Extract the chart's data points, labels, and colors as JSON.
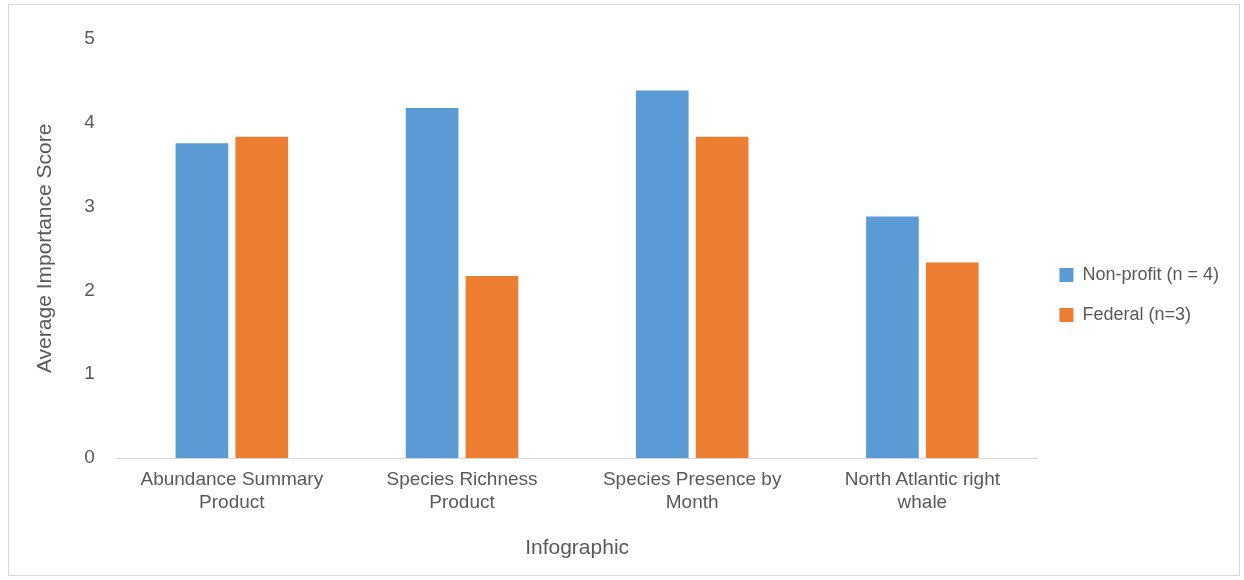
{
  "chart_data": {
    "type": "bar",
    "xlabel": "Infographic",
    "ylabel": "Average Importance Score",
    "categories": [
      "Abundance Summary Product",
      "Species Richness Product",
      "Species Presence by Month",
      "North Atlantic right whale"
    ],
    "series": [
      {
        "name": "Non-profit (n = 4)",
        "color": "#5b9bd5",
        "values": [
          3.75,
          4.17,
          4.38,
          2.88
        ]
      },
      {
        "name": "Federal (n=3)",
        "color": "#ed7d31",
        "values": [
          3.83,
          2.17,
          3.83,
          2.33
        ]
      }
    ],
    "ylim": [
      0,
      5
    ],
    "yticks": [
      0,
      1,
      2,
      3,
      4,
      5
    ],
    "grid": false,
    "legend": "right"
  }
}
